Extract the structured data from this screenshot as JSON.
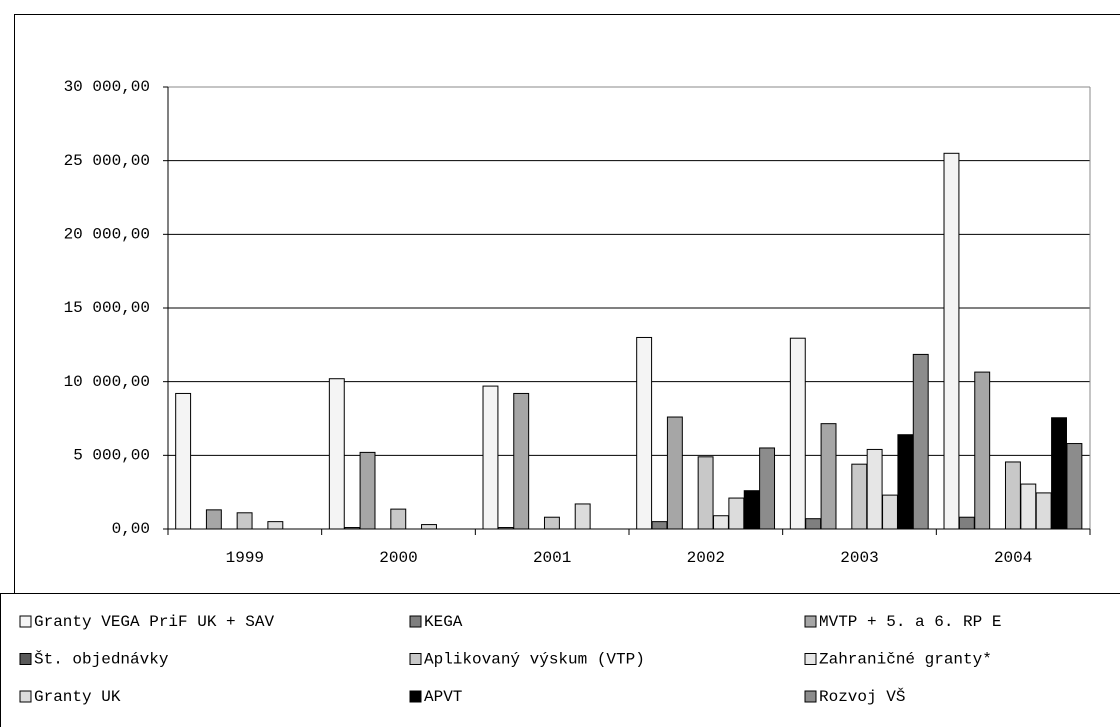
{
  "chart_data": {
    "type": "bar",
    "categories": [
      "1999",
      "2000",
      "2001",
      "2002",
      "2003",
      "2004"
    ],
    "series": [
      {
        "name": "Granty VEGA PriF UK + SAV",
        "color": "#f4f4f4",
        "values": [
          9200,
          10200,
          9700,
          13000,
          12950,
          25500
        ]
      },
      {
        "name": "KEGA",
        "color": "#7f7f7f",
        "values": [
          0,
          100,
          100,
          500,
          700,
          800
        ]
      },
      {
        "name": "MVTP + 5. a 6. RP E",
        "color": "#a6a6a6",
        "values": [
          1300,
          5200,
          9200,
          7600,
          7150,
          10650
        ]
      },
      {
        "name": "Št. objednávky",
        "color": "#595959",
        "values": [
          0,
          0,
          0,
          0,
          0,
          0
        ]
      },
      {
        "name": "Aplikovaný výskum (VTP)",
        "color": "#c8c8c8",
        "values": [
          1100,
          1350,
          800,
          4900,
          4400,
          4550
        ]
      },
      {
        "name": "Zahraničné granty*",
        "color": "#e6e6e6",
        "values": [
          0,
          0,
          0,
          900,
          5400,
          3050
        ]
      },
      {
        "name": "Granty UK",
        "color": "#dcdcdc",
        "values": [
          500,
          300,
          1700,
          2100,
          2300,
          2450
        ]
      },
      {
        "name": "APVT",
        "color": "#000000",
        "values": [
          0,
          0,
          0,
          2600,
          6400,
          7550
        ]
      },
      {
        "name": "Rozvoj VŠ",
        "color": "#8c8c8c",
        "values": [
          0,
          0,
          0,
          5500,
          11850,
          5800
        ]
      }
    ],
    "ylim": [
      0,
      30000
    ],
    "yticks": [
      {
        "value": 0,
        "label": "0,00"
      },
      {
        "value": 5000,
        "label": "5 000,00"
      },
      {
        "value": 10000,
        "label": "10 000,00"
      },
      {
        "value": 15000,
        "label": "15 000,00"
      },
      {
        "value": 20000,
        "label": "20 000,00"
      },
      {
        "value": 25000,
        "label": "25 000,00"
      },
      {
        "value": 30000,
        "label": "30 000,00"
      }
    ],
    "grid": true
  }
}
